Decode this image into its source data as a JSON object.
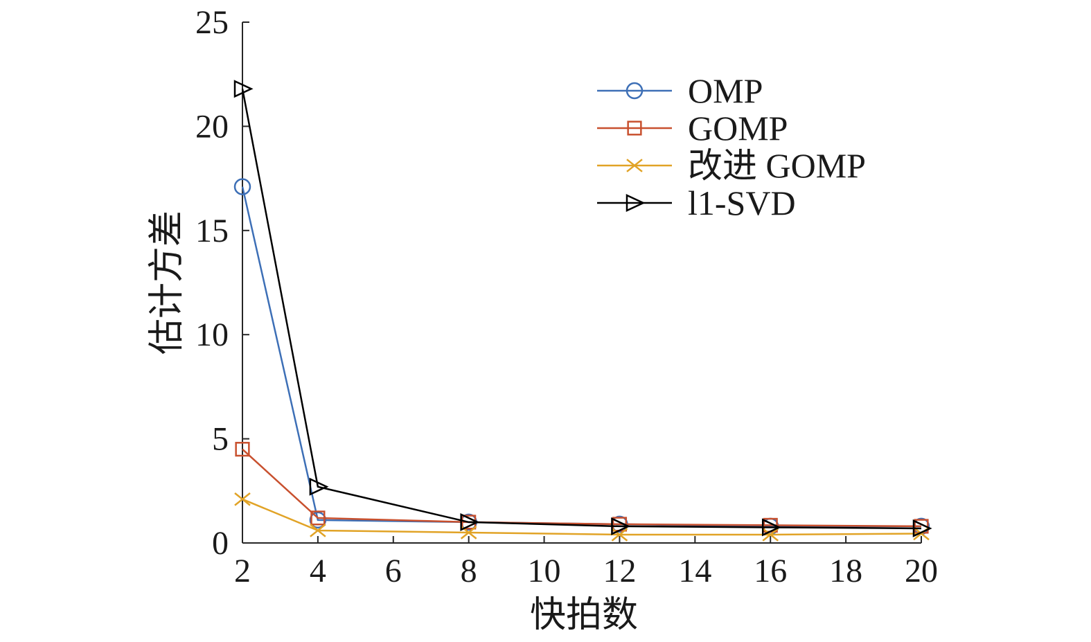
{
  "chart_data": {
    "type": "line",
    "title": "",
    "xlabel": "快拍数",
    "ylabel": "估计方差",
    "xlim": [
      2,
      20
    ],
    "ylim": [
      0,
      25
    ],
    "xticks": [
      2,
      4,
      6,
      8,
      10,
      12,
      14,
      16,
      18,
      20
    ],
    "yticks": [
      0,
      5,
      10,
      15,
      20,
      25
    ],
    "x": [
      2,
      4,
      8,
      12,
      16,
      20
    ],
    "legend_position": "top-right",
    "grid": false,
    "series": [
      {
        "name": "OMP",
        "marker": "circle",
        "color": "#3d6fb6",
        "values": [
          17.1,
          1.1,
          1.0,
          0.9,
          0.8,
          0.8
        ]
      },
      {
        "name": "GOMP",
        "marker": "square",
        "color": "#c8502e",
        "values": [
          4.5,
          1.2,
          1.0,
          0.9,
          0.85,
          0.8
        ]
      },
      {
        "name": "改进 GOMP",
        "marker": "x",
        "color": "#e1a326",
        "values": [
          2.1,
          0.6,
          0.5,
          0.4,
          0.4,
          0.45
        ]
      },
      {
        "name": "l1-SVD",
        "marker": "triangle-right",
        "color": "#000000",
        "values": [
          21.8,
          2.7,
          1.0,
          0.8,
          0.75,
          0.7
        ]
      }
    ]
  }
}
